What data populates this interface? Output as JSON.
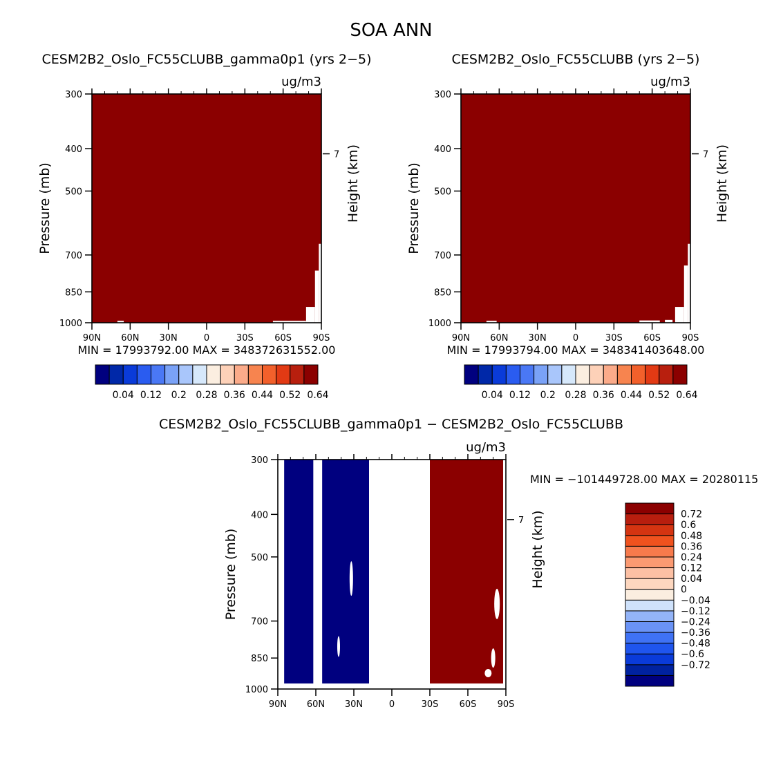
{
  "figure": {
    "title": "SOA ANN"
  },
  "colors": {
    "abs_colorbar": [
      "#00007f",
      "#0028a8",
      "#0a3bd9",
      "#2a5cf0",
      "#4a78f5",
      "#7aa2f7",
      "#a9c6fb",
      "#d6e8fb",
      "#fbeee0",
      "#fdd1b8",
      "#fbab8a",
      "#f7844f",
      "#f2602b",
      "#e23a14",
      "#b81f0e",
      "#8b0000"
    ],
    "diff_colorbar_bottom_to_top": [
      "#00007f",
      "#0022a0",
      "#0a3bd9",
      "#1f55ee",
      "#3f72f5",
      "#6a93f6",
      "#93b4f8",
      "#cfe2fb",
      "#fbeee0",
      "#fdd7bf",
      "#fcc0a4",
      "#fb9a72",
      "#f77a4c",
      "#f0521e",
      "#d53411",
      "#b81e0e",
      "#8b0000"
    ],
    "fill_dark_red": "#8b0000",
    "fill_dark_blue": "#00007f"
  },
  "chart_data": [
    {
      "type": "heatmap",
      "title": "CESM2B2_Oslo_FC55CLUBB_gamma0p1 (yrs 2−5)",
      "units": "ug/m3",
      "ylabel": "Pressure (mb)",
      "ylabel_right": "Height (km)",
      "x_ticks": [
        "90N",
        "60N",
        "30N",
        "0",
        "30S",
        "60S",
        "90S"
      ],
      "x_range": [
        90,
        -90
      ],
      "y_ticks": [
        300,
        400,
        500,
        700,
        850,
        1000
      ],
      "y_range": [
        300,
        1000
      ],
      "y_scale": "log",
      "right_ticks": [
        "7"
      ],
      "min_max_text": "MIN = 17993792.00   MAX = 348372631552.00",
      "colorbar_labels": [
        "0.04",
        "0.12",
        "0.2",
        "0.28",
        "0.36",
        "0.44",
        "0.52",
        "0.64"
      ],
      "fill_note": "field saturated above colorbar maximum everywhere except small gaps near the surface",
      "gaps": [
        {
          "lat": [
            70,
            65
          ],
          "p": [
            990,
            1000
          ]
        },
        {
          "lat": [
            -52,
            -78
          ],
          "p": [
            990,
            1000
          ]
        },
        {
          "lat": [
            -78,
            -85
          ],
          "p": [
            920,
            1000
          ]
        },
        {
          "lat": [
            -85,
            -88
          ],
          "p": [
            760,
            1000
          ]
        },
        {
          "lat": [
            -88,
            -90
          ],
          "p": [
            660,
            1000
          ]
        }
      ]
    },
    {
      "type": "heatmap",
      "title": "CESM2B2_Oslo_FC55CLUBB (yrs 2−5)",
      "units": "ug/m3",
      "ylabel": "Pressure (mb)",
      "ylabel_right": "Height (km)",
      "x_ticks": [
        "90N",
        "60N",
        "30N",
        "0",
        "30S",
        "60S",
        "90S"
      ],
      "x_range": [
        90,
        -90
      ],
      "y_ticks": [
        300,
        400,
        500,
        700,
        850,
        1000
      ],
      "y_range": [
        300,
        1000
      ],
      "y_scale": "log",
      "right_ticks": [
        "7"
      ],
      "min_max_text": "MIN = 17993794.00   MAX = 348341403648.00",
      "colorbar_labels": [
        "0.04",
        "0.12",
        "0.2",
        "0.28",
        "0.36",
        "0.44",
        "0.52",
        "0.64"
      ],
      "gaps": [
        {
          "lat": [
            70,
            62
          ],
          "p": [
            990,
            1000
          ]
        },
        {
          "lat": [
            -50,
            -66
          ],
          "p": [
            988,
            1000
          ]
        },
        {
          "lat": [
            -70,
            -76
          ],
          "p": [
            985,
            1000
          ]
        },
        {
          "lat": [
            -78,
            -85
          ],
          "p": [
            920,
            1000
          ]
        },
        {
          "lat": [
            -85,
            -88
          ],
          "p": [
            740,
            1000
          ]
        },
        {
          "lat": [
            -88,
            -90
          ],
          "p": [
            660,
            1000
          ]
        }
      ]
    },
    {
      "type": "heatmap",
      "title": "CESM2B2_Oslo_FC55CLUBB_gamma0p1 − CESM2B2_Oslo_FC55CLUBB",
      "units": "ug/m3",
      "ylabel": "Pressure (mb)",
      "ylabel_right": "Height (km)",
      "x_ticks": [
        "90N",
        "60N",
        "30N",
        "0",
        "30S",
        "60S",
        "90S"
      ],
      "x_range": [
        90,
        -90
      ],
      "y_ticks": [
        300,
        400,
        500,
        700,
        850,
        1000
      ],
      "y_range": [
        300,
        1000
      ],
      "y_scale": "log",
      "right_ticks": [
        "7"
      ],
      "min_max_text": "MIN = −101449728.00   MAX = 20280115",
      "colorbar_labels": [
        "0.72",
        "0.6",
        "0.48",
        "0.36",
        "0.24",
        "0.12",
        "0.04",
        "0",
        "−0.04",
        "−0.12",
        "−0.24",
        "−0.36",
        "−0.48",
        "−0.6",
        "−0.72"
      ],
      "negative_bands": [
        {
          "lat_left": 85,
          "lat_right": 62,
          "note": "narrow column"
        },
        {
          "lat_left": 55,
          "lat_right": 18,
          "note": "wide column"
        }
      ],
      "positive_band": {
        "lat_left": -30,
        "lat_right": -90
      }
    }
  ]
}
